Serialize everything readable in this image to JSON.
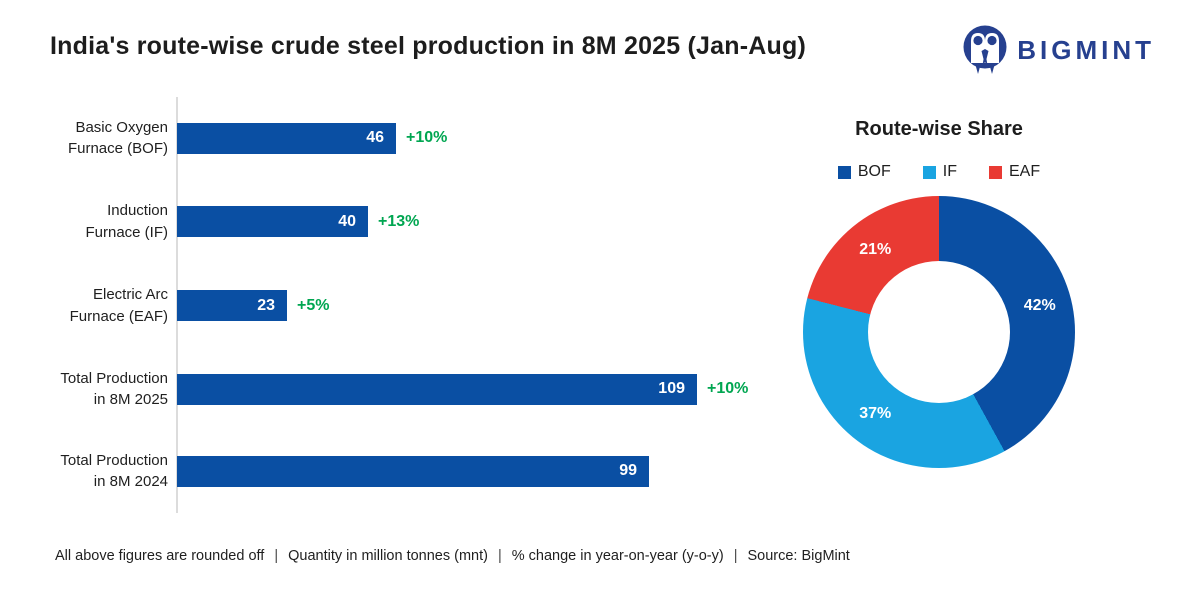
{
  "header": {
    "title": "India's route-wise crude steel production in 8M 2025 (Jan-Aug)",
    "brand": "BIGMINT",
    "brand_color": "#26408f"
  },
  "chart_data": [
    {
      "type": "bar",
      "orientation": "horizontal",
      "categories": [
        [
          "Basic Oxygen",
          "Furnace (BOF)"
        ],
        [
          "Induction",
          "Furnace (IF)"
        ],
        [
          "Electric Arc",
          "Furnace (EAF)"
        ],
        [
          "Total Production",
          "in 8M 2025"
        ],
        [
          "Total Production",
          "in 8M 2024"
        ]
      ],
      "values": [
        46,
        40,
        23,
        109,
        99
      ],
      "change_labels": [
        "+10%",
        "+13%",
        "+5%",
        "+10%",
        ""
      ],
      "xlim": [
        0,
        109
      ],
      "grid": false,
      "bar_color": "#0a4fa3",
      "value_label_color": "#ffffff",
      "change_label_color": "#00a651"
    },
    {
      "type": "pie",
      "subtype": "donut",
      "title": "Route-wise Share",
      "legend_position": "top",
      "start_angle_deg": 0,
      "direction": "clockwise",
      "slices": [
        {
          "label": "BOF",
          "value": 42,
          "pct_label": "42%",
          "color": "#0a4fa3"
        },
        {
          "label": "IF",
          "value": 37,
          "pct_label": "37%",
          "color": "#1aa4e1"
        },
        {
          "label": "EAF",
          "value": 21,
          "pct_label": "21%",
          "color": "#e93a33"
        }
      ]
    }
  ],
  "footer": {
    "separator": "|",
    "notes": [
      "All above figures are rounded off",
      "Quantity in million tonnes (mnt)",
      "% change in year-on-year (y-o-y)",
      "Source: BigMint"
    ]
  }
}
